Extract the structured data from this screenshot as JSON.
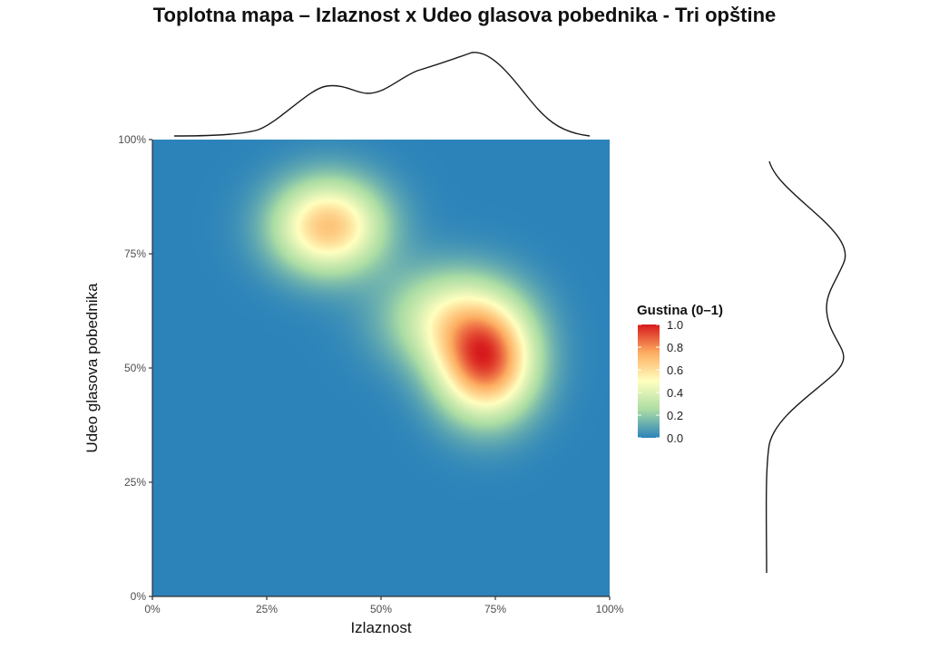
{
  "chart_data": {
    "type": "heatmap",
    "title": "Toplotna mapa – Izlaznost x Udeo glasova pobednika - Tri opštine",
    "xlabel": "Izlaznost",
    "ylabel": "Udeo glasova pobednika",
    "x_ticks": [
      "0%",
      "25%",
      "50%",
      "75%",
      "100%"
    ],
    "y_ticks": [
      "0%",
      "25%",
      "50%",
      "75%",
      "100%"
    ],
    "x_tick_values": [
      0,
      0.25,
      0.5,
      0.75,
      1
    ],
    "y_tick_values": [
      0,
      0.25,
      0.5,
      0.75,
      1
    ],
    "xlim": [
      0,
      1
    ],
    "ylim": [
      0,
      1
    ],
    "grid": false,
    "density_peaks": [
      {
        "x": 0.385,
        "y": 0.81,
        "sx": 0.085,
        "sy": 0.072,
        "weight": 0.8
      },
      {
        "x": 0.73,
        "y": 0.51,
        "sx": 0.075,
        "sy": 0.085,
        "weight": 1.0
      },
      {
        "x": 0.65,
        "y": 0.61,
        "sx": 0.1,
        "sy": 0.075,
        "weight": 0.48
      }
    ],
    "colorbar": {
      "title": "Gustina (0–1)",
      "ticks": [
        "1.0",
        "0.8",
        "0.6",
        "0.4",
        "0.2",
        "0.0"
      ],
      "tick_values": [
        1.0,
        0.8,
        0.6,
        0.4,
        0.2,
        0.0
      ],
      "range": [
        0,
        1
      ],
      "colors": [
        "#2b83ba",
        "#abdda4",
        "#ffffbf",
        "#fdae61",
        "#d7191c"
      ],
      "placement": "right"
    },
    "marginals": {
      "x": "density curve of Izlaznost (top)",
      "y": "density curve of Udeo glasova pobednika (right)"
    }
  }
}
